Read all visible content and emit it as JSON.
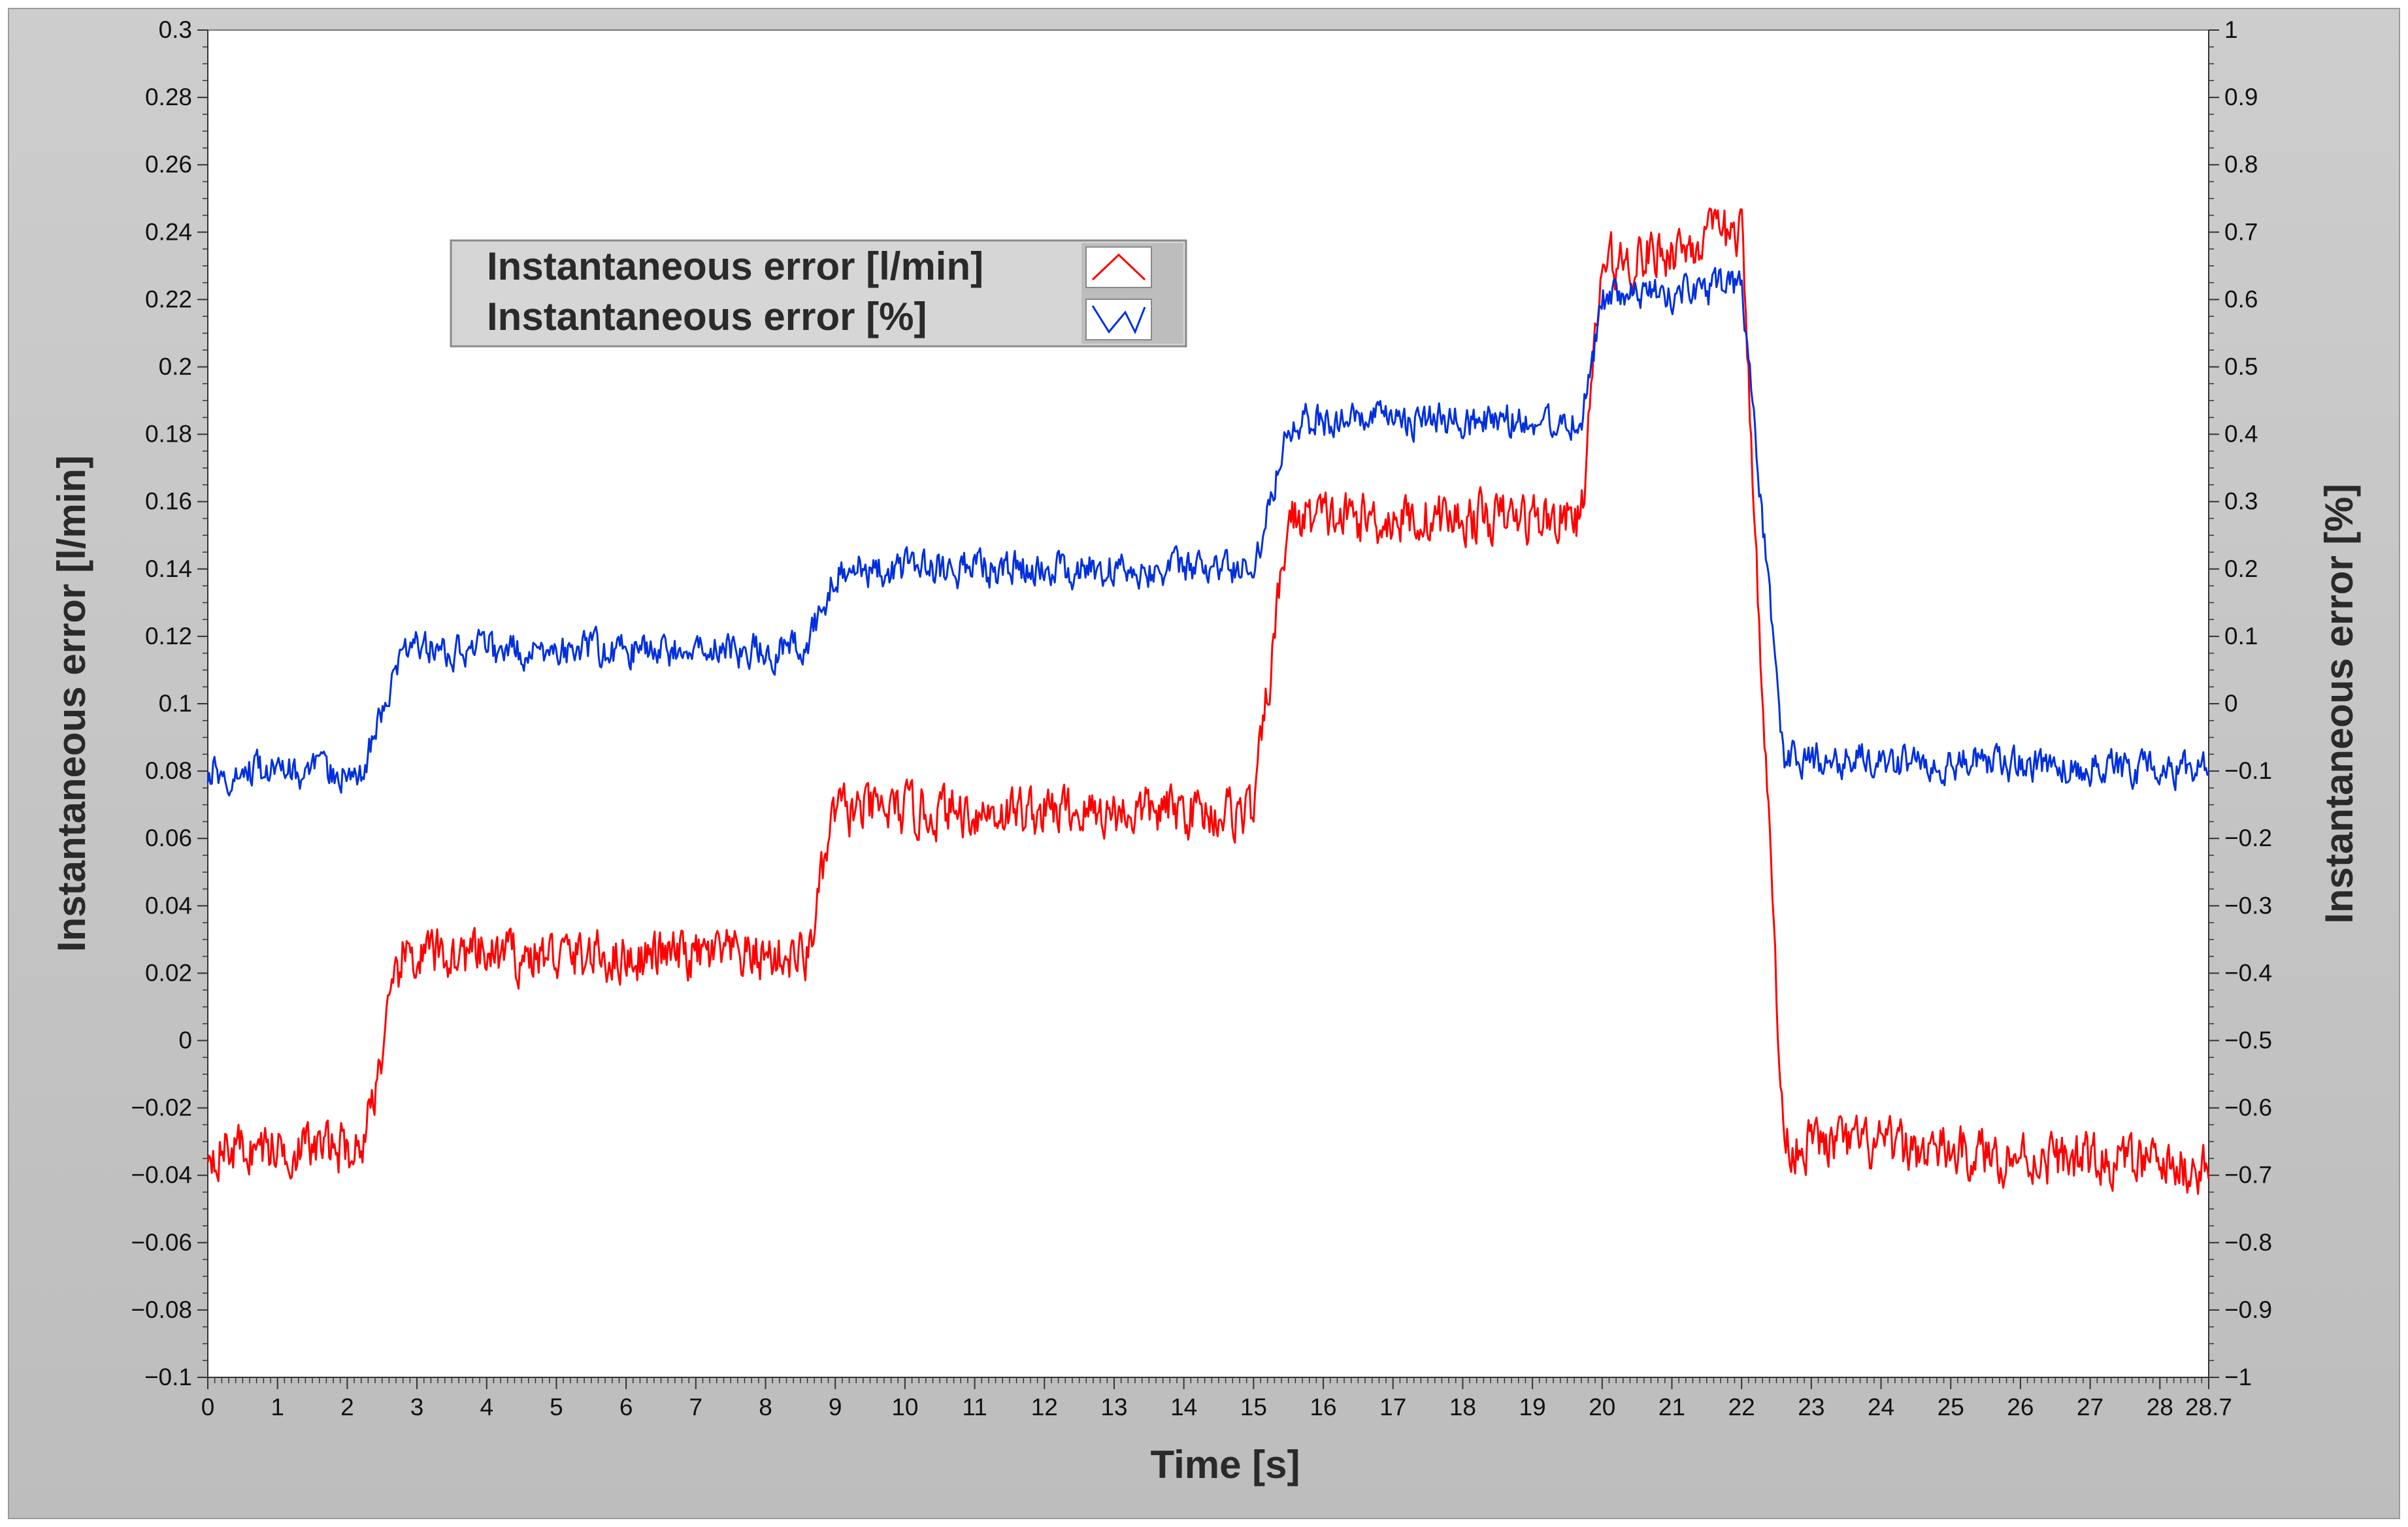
{
  "chart_data": {
    "type": "line",
    "xlabel": "Time [s]",
    "ylabel_left": "Instantaneous error [l/min]",
    "ylabel_right": "Instantaneous error [%]",
    "xlim": [
      0,
      28.7
    ],
    "ylim_left": [
      -0.1,
      0.3
    ],
    "ylim_right": [
      -1,
      1
    ],
    "x_ticks": [
      "0",
      "1",
      "2",
      "3",
      "4",
      "5",
      "6",
      "7",
      "8",
      "9",
      "10",
      "11",
      "12",
      "13",
      "14",
      "15",
      "16",
      "17",
      "18",
      "19",
      "20",
      "21",
      "22",
      "23",
      "24",
      "25",
      "26",
      "27",
      "28",
      "28.7"
    ],
    "y_left_ticks": [
      "0.3",
      "0.28",
      "0.26",
      "0.24",
      "0.22",
      "0.2",
      "0.18",
      "0.16",
      "0.14",
      "0.12",
      "0.1",
      "0.08",
      "0.06",
      "0.04",
      "0.02",
      "0",
      "−0.02",
      "−0.04",
      "−0.06",
      "−0.08",
      "−0.1"
    ],
    "y_right_ticks": [
      "1",
      "0.9",
      "0.8",
      "0.7",
      "0.6",
      "0.5",
      "0.4",
      "0.3",
      "0.2",
      "0.1",
      "0",
      "−0.1",
      "−0.2",
      "−0.3",
      "−0.4",
      "−0.5",
      "−0.6",
      "−0.7",
      "−0.8",
      "−0.9",
      "−1"
    ],
    "grid": false,
    "legend_position": "top-left",
    "series": [
      {
        "name": "Instantaneous error [l/min]",
        "color": "#ff0000",
        "axis": "left",
        "noise_amplitude": 0.012,
        "segments": [
          {
            "x": 0.0,
            "y": -0.032
          },
          {
            "x": 2.2,
            "y": -0.032
          },
          {
            "x": 2.8,
            "y": 0.025
          },
          {
            "x": 8.6,
            "y": 0.025
          },
          {
            "x": 9.0,
            "y": 0.068
          },
          {
            "x": 15.0,
            "y": 0.068
          },
          {
            "x": 15.5,
            "y": 0.155
          },
          {
            "x": 19.7,
            "y": 0.155
          },
          {
            "x": 20.0,
            "y": 0.23
          },
          {
            "x": 22.0,
            "y": 0.24
          },
          {
            "x": 22.6,
            "y": -0.03
          },
          {
            "x": 28.7,
            "y": -0.038
          }
        ]
      },
      {
        "name": "Instantaneous error [%]",
        "color": "#0030dd",
        "axis": "right",
        "noise_amplitude": 0.04,
        "segments": [
          {
            "x": 0.0,
            "y": -0.1
          },
          {
            "x": 2.2,
            "y": -0.1
          },
          {
            "x": 2.8,
            "y": 0.08
          },
          {
            "x": 8.6,
            "y": 0.08
          },
          {
            "x": 9.0,
            "y": 0.2
          },
          {
            "x": 15.0,
            "y": 0.2
          },
          {
            "x": 15.5,
            "y": 0.42
          },
          {
            "x": 19.7,
            "y": 0.42
          },
          {
            "x": 20.0,
            "y": 0.6
          },
          {
            "x": 22.0,
            "y": 0.62
          },
          {
            "x": 22.6,
            "y": -0.08
          },
          {
            "x": 28.7,
            "y": -0.1
          }
        ]
      }
    ]
  }
}
